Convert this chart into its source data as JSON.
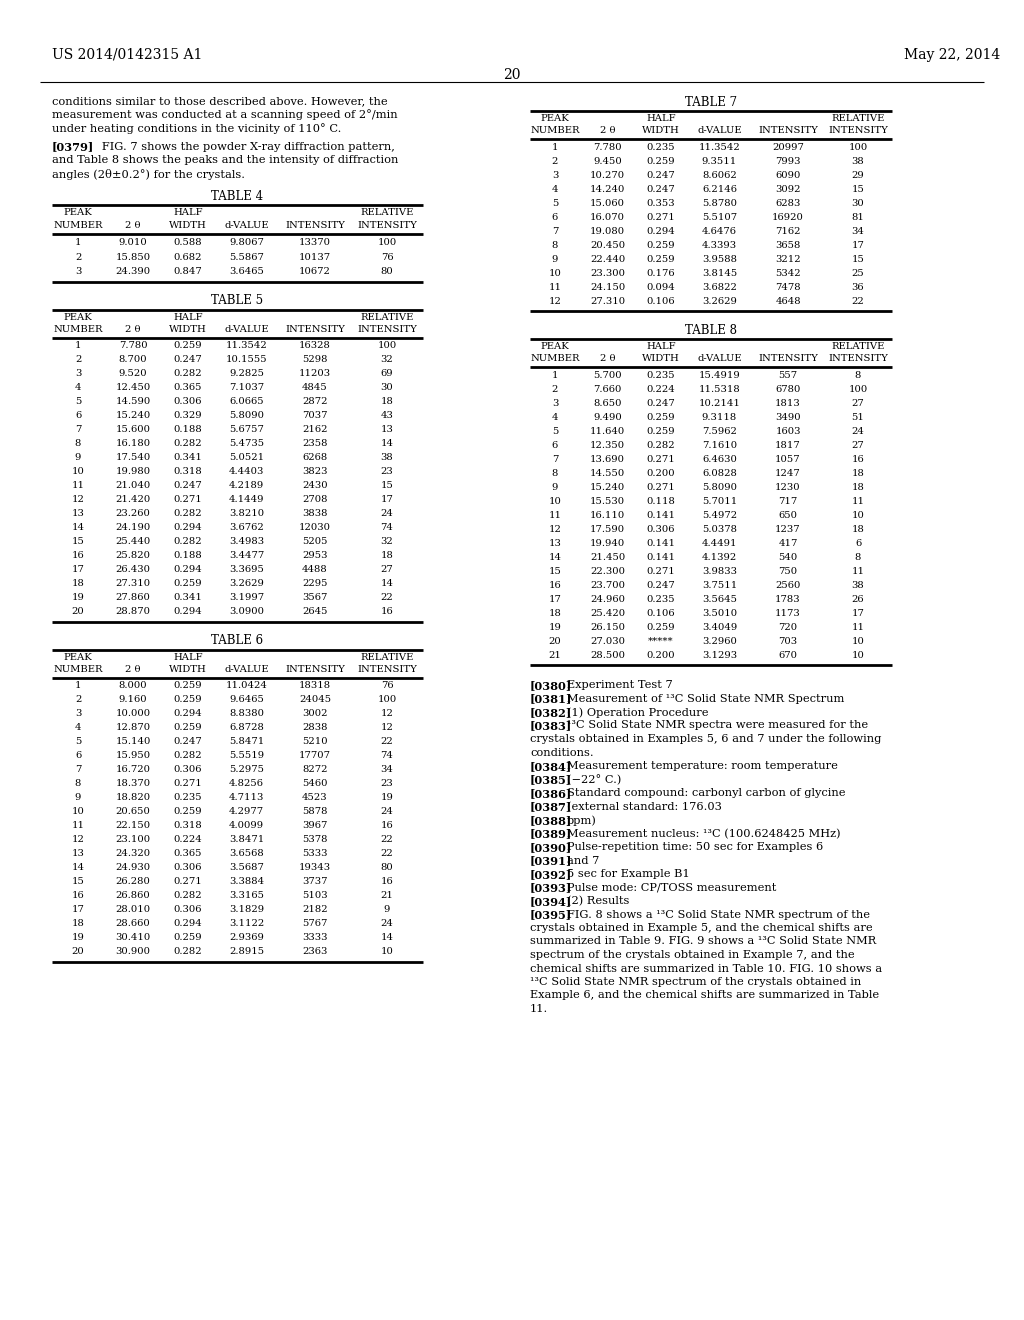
{
  "header_left": "US 2014/0142315 A1",
  "header_right": "May 22, 2014",
  "page_number": "20",
  "para1": "conditions similar to those described above. However, the\nmeasurement was conducted at a scanning speed of 2°/min\nunder heating conditions in the vicinity of 110° C.",
  "para2_bold": "[0379]",
  "para2_rest": "   FIG. 7 shows the powder X-ray diffraction pattern,\nand Table 8 shows the peaks and the intensity of diffraction\nangles (2θ±0.2°) for the crystals.",
  "table4_title": "TABLE 4",
  "table4_data": [
    [
      "1",
      "9.010",
      "0.588",
      "9.8067",
      "13370",
      "100"
    ],
    [
      "2",
      "15.850",
      "0.682",
      "5.5867",
      "10137",
      "76"
    ],
    [
      "3",
      "24.390",
      "0.847",
      "3.6465",
      "10672",
      "80"
    ]
  ],
  "table5_title": "TABLE 5",
  "table5_data": [
    [
      "1",
      "7.780",
      "0.259",
      "11.3542",
      "16328",
      "100"
    ],
    [
      "2",
      "8.700",
      "0.247",
      "10.1555",
      "5298",
      "32"
    ],
    [
      "3",
      "9.520",
      "0.282",
      "9.2825",
      "11203",
      "69"
    ],
    [
      "4",
      "12.450",
      "0.365",
      "7.1037",
      "4845",
      "30"
    ],
    [
      "5",
      "14.590",
      "0.306",
      "6.0665",
      "2872",
      "18"
    ],
    [
      "6",
      "15.240",
      "0.329",
      "5.8090",
      "7037",
      "43"
    ],
    [
      "7",
      "15.600",
      "0.188",
      "5.6757",
      "2162",
      "13"
    ],
    [
      "8",
      "16.180",
      "0.282",
      "5.4735",
      "2358",
      "14"
    ],
    [
      "9",
      "17.540",
      "0.341",
      "5.0521",
      "6268",
      "38"
    ],
    [
      "10",
      "19.980",
      "0.318",
      "4.4403",
      "3823",
      "23"
    ],
    [
      "11",
      "21.040",
      "0.247",
      "4.2189",
      "2430",
      "15"
    ],
    [
      "12",
      "21.420",
      "0.271",
      "4.1449",
      "2708",
      "17"
    ],
    [
      "13",
      "23.260",
      "0.282",
      "3.8210",
      "3838",
      "24"
    ],
    [
      "14",
      "24.190",
      "0.294",
      "3.6762",
      "12030",
      "74"
    ],
    [
      "15",
      "25.440",
      "0.282",
      "3.4983",
      "5205",
      "32"
    ],
    [
      "16",
      "25.820",
      "0.188",
      "3.4477",
      "2953",
      "18"
    ],
    [
      "17",
      "26.430",
      "0.294",
      "3.3695",
      "4488",
      "27"
    ],
    [
      "18",
      "27.310",
      "0.259",
      "3.2629",
      "2295",
      "14"
    ],
    [
      "19",
      "27.860",
      "0.341",
      "3.1997",
      "3567",
      "22"
    ],
    [
      "20",
      "28.870",
      "0.294",
      "3.0900",
      "2645",
      "16"
    ]
  ],
  "table6_title": "TABLE 6",
  "table6_data": [
    [
      "1",
      "8.000",
      "0.259",
      "11.0424",
      "18318",
      "76"
    ],
    [
      "2",
      "9.160",
      "0.259",
      "9.6465",
      "24045",
      "100"
    ],
    [
      "3",
      "10.000",
      "0.294",
      "8.8380",
      "3002",
      "12"
    ],
    [
      "4",
      "12.870",
      "0.259",
      "6.8728",
      "2838",
      "12"
    ],
    [
      "5",
      "15.140",
      "0.247",
      "5.8471",
      "5210",
      "22"
    ],
    [
      "6",
      "15.950",
      "0.282",
      "5.5519",
      "17707",
      "74"
    ],
    [
      "7",
      "16.720",
      "0.306",
      "5.2975",
      "8272",
      "34"
    ],
    [
      "8",
      "18.370",
      "0.271",
      "4.8256",
      "5460",
      "23"
    ],
    [
      "9",
      "18.820",
      "0.235",
      "4.7113",
      "4523",
      "19"
    ],
    [
      "10",
      "20.650",
      "0.259",
      "4.2977",
      "5878",
      "24"
    ],
    [
      "11",
      "22.150",
      "0.318",
      "4.0099",
      "3967",
      "16"
    ],
    [
      "12",
      "23.100",
      "0.224",
      "3.8471",
      "5378",
      "22"
    ],
    [
      "13",
      "24.320",
      "0.365",
      "3.6568",
      "5333",
      "22"
    ],
    [
      "14",
      "24.930",
      "0.306",
      "3.5687",
      "19343",
      "80"
    ],
    [
      "15",
      "26.280",
      "0.271",
      "3.3884",
      "3737",
      "16"
    ],
    [
      "16",
      "26.860",
      "0.282",
      "3.3165",
      "5103",
      "21"
    ],
    [
      "17",
      "28.010",
      "0.306",
      "3.1829",
      "2182",
      "9"
    ],
    [
      "18",
      "28.660",
      "0.294",
      "3.1122",
      "5767",
      "24"
    ],
    [
      "19",
      "30.410",
      "0.259",
      "2.9369",
      "3333",
      "14"
    ],
    [
      "20",
      "30.900",
      "0.282",
      "2.8915",
      "2363",
      "10"
    ]
  ],
  "table7_title": "TABLE 7",
  "table7_data": [
    [
      "1",
      "7.780",
      "0.235",
      "11.3542",
      "20997",
      "100"
    ],
    [
      "2",
      "9.450",
      "0.259",
      "9.3511",
      "7993",
      "38"
    ],
    [
      "3",
      "10.270",
      "0.247",
      "8.6062",
      "6090",
      "29"
    ],
    [
      "4",
      "14.240",
      "0.247",
      "6.2146",
      "3092",
      "15"
    ],
    [
      "5",
      "15.060",
      "0.353",
      "5.8780",
      "6283",
      "30"
    ],
    [
      "6",
      "16.070",
      "0.271",
      "5.5107",
      "16920",
      "81"
    ],
    [
      "7",
      "19.080",
      "0.294",
      "4.6476",
      "7162",
      "34"
    ],
    [
      "8",
      "20.450",
      "0.259",
      "4.3393",
      "3658",
      "17"
    ],
    [
      "9",
      "22.440",
      "0.259",
      "3.9588",
      "3212",
      "15"
    ],
    [
      "10",
      "23.300",
      "0.176",
      "3.8145",
      "5342",
      "25"
    ],
    [
      "11",
      "24.150",
      "0.094",
      "3.6822",
      "7478",
      "36"
    ],
    [
      "12",
      "27.310",
      "0.106",
      "3.2629",
      "4648",
      "22"
    ]
  ],
  "table8_title": "TABLE 8",
  "table8_data": [
    [
      "1",
      "5.700",
      "0.235",
      "15.4919",
      "557",
      "8"
    ],
    [
      "2",
      "7.660",
      "0.224",
      "11.5318",
      "6780",
      "100"
    ],
    [
      "3",
      "8.650",
      "0.247",
      "10.2141",
      "1813",
      "27"
    ],
    [
      "4",
      "9.490",
      "0.259",
      "9.3118",
      "3490",
      "51"
    ],
    [
      "5",
      "11.640",
      "0.259",
      "7.5962",
      "1603",
      "24"
    ],
    [
      "6",
      "12.350",
      "0.282",
      "7.1610",
      "1817",
      "27"
    ],
    [
      "7",
      "13.690",
      "0.271",
      "6.4630",
      "1057",
      "16"
    ],
    [
      "8",
      "14.550",
      "0.200",
      "6.0828",
      "1247",
      "18"
    ],
    [
      "9",
      "15.240",
      "0.271",
      "5.8090",
      "1230",
      "18"
    ],
    [
      "10",
      "15.530",
      "0.118",
      "5.7011",
      "717",
      "11"
    ],
    [
      "11",
      "16.110",
      "0.141",
      "5.4972",
      "650",
      "10"
    ],
    [
      "12",
      "17.590",
      "0.306",
      "5.0378",
      "1237",
      "18"
    ],
    [
      "13",
      "19.940",
      "0.141",
      "4.4491",
      "417",
      "6"
    ],
    [
      "14",
      "21.450",
      "0.141",
      "4.1392",
      "540",
      "8"
    ],
    [
      "15",
      "22.300",
      "0.271",
      "3.9833",
      "750",
      "11"
    ],
    [
      "16",
      "23.700",
      "0.247",
      "3.7511",
      "2560",
      "38"
    ],
    [
      "17",
      "24.960",
      "0.235",
      "3.5645",
      "1783",
      "26"
    ],
    [
      "18",
      "25.420",
      "0.106",
      "3.5010",
      "1173",
      "17"
    ],
    [
      "19",
      "26.150",
      "0.259",
      "3.4049",
      "720",
      "11"
    ],
    [
      "20",
      "27.030",
      "*****",
      "3.2960",
      "703",
      "10"
    ],
    [
      "21",
      "28.500",
      "0.200",
      "3.1293",
      "670",
      "10"
    ]
  ],
  "paras_right": [
    {
      "tag": "[0380]",
      "indent": 8,
      "text": "Experiment Test 7"
    },
    {
      "tag": "[0381]",
      "indent": 8,
      "text": "Measurement of ¹³C Solid State NMR Spectrum"
    },
    {
      "tag": "[0382]",
      "indent": 8,
      "text": "(1) Operation Procedure"
    },
    {
      "tag": "[0383]",
      "indent": 8,
      "text": "¹³C Solid State NMR spectra were measured for the\ncrystals obtained in Examples 5, 6 and 7 under the following\nconditions."
    },
    {
      "tag": "[0384]",
      "indent": 8,
      "text": "Measurement temperature: room temperature"
    },
    {
      "tag": "[0385]",
      "indent": 8,
      "text": "(−22° C.)"
    },
    {
      "tag": "[0386]",
      "indent": 8,
      "text": "Standard compound: carbonyl carbon of glycine"
    },
    {
      "tag": "[0387]",
      "indent": 8,
      "text": "(external standard: 176.03"
    },
    {
      "tag": "[0388]",
      "indent": 8,
      "text": "ppm)"
    },
    {
      "tag": "[0389]",
      "indent": 8,
      "text": "Measurement nucleus: ¹³C (100.6248425 MHz)"
    },
    {
      "tag": "[0390]",
      "indent": 8,
      "text": "Pulse-repetition time: 50 sec for Examples 6"
    },
    {
      "tag": "[0391]",
      "indent": 8,
      "text": "and 7"
    },
    {
      "tag": "[0392]",
      "indent": 8,
      "text": "5 sec for Example B1"
    },
    {
      "tag": "[0393]",
      "indent": 8,
      "text": "Pulse mode: CP/TOSS measurement"
    },
    {
      "tag": "[0394]",
      "indent": 8,
      "text": "(2) Results"
    },
    {
      "tag": "[0395]",
      "indent": 8,
      "text": "FIG. 8 shows a ¹³C Solid State NMR spectrum of the\ncrystals obtained in Example 5, and the chemical shifts are\nsummarized in Table 9. FIG. 9 shows a ¹³C Solid State NMR\nspectrum of the crystals obtained in Example 7, and the\nchemical shifts are summarized in Table 10. FIG. 10 shows a\n¹³C Solid State NMR spectrum of the crystals obtained in\nExample 6, and the chemical shifts are summarized in Table\n11."
    }
  ],
  "col_headers_row1": [
    "PEAK",
    "",
    "HALF",
    "",
    "",
    "RELATIVE"
  ],
  "col_headers_row2": [
    "NUMBER",
    "2 θ",
    "WIDTH",
    "d-VALUE",
    "INTENSITY",
    "INTENSITY"
  ],
  "col_widths_left": [
    52,
    58,
    52,
    65,
    72,
    72
  ],
  "col_widths_right": [
    50,
    55,
    52,
    65,
    72,
    68
  ]
}
